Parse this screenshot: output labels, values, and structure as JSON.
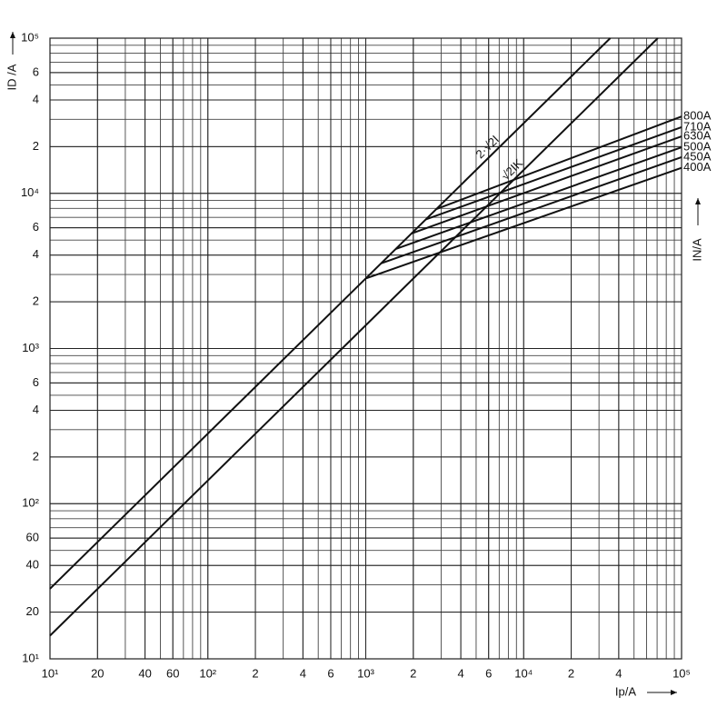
{
  "chart_data": {
    "type": "line",
    "xlabel": "Ip/A",
    "ylabel": "ID /A",
    "right_label": "IN/A",
    "xscale": "log",
    "yscale": "log",
    "grid": true,
    "color": "#111111",
    "xlim": [
      10,
      100000
    ],
    "ylim": [
      10,
      100000
    ],
    "xticks": [
      {
        "value": 10,
        "label": "10¹"
      },
      20,
      40,
      60,
      {
        "value": 100,
        "label": "10²"
      },
      {
        "value": 200,
        "label": "2"
      },
      {
        "value": 400,
        "label": "4"
      },
      {
        "value": 600,
        "label": "6"
      },
      {
        "value": 1000,
        "label": "10³"
      },
      {
        "value": 2000,
        "label": "2"
      },
      {
        "value": 4000,
        "label": "4"
      },
      {
        "value": 6000,
        "label": "6"
      },
      {
        "value": 10000,
        "label": "10⁴"
      },
      {
        "value": 20000,
        "label": "2"
      },
      {
        "value": 40000,
        "label": "4"
      },
      {
        "value": 100000,
        "label": "10⁵"
      }
    ],
    "yticks": [
      {
        "value": 10,
        "label": "10¹"
      },
      20,
      40,
      60,
      {
        "value": 100,
        "label": "10²"
      },
      {
        "value": 200,
        "label": "2"
      },
      {
        "value": 400,
        "label": "4"
      },
      {
        "value": 600,
        "label": "6"
      },
      {
        "value": 1000,
        "label": "10³"
      },
      {
        "value": 2000,
        "label": "2"
      },
      {
        "value": 4000,
        "label": "4"
      },
      {
        "value": 6000,
        "label": "6"
      },
      {
        "value": 10000,
        "label": "10⁴"
      },
      {
        "value": 20000,
        "label": "2"
      },
      {
        "value": 40000,
        "label": "4"
      },
      {
        "value": 60000,
        "label": "6"
      },
      {
        "value": 100000,
        "label": "10⁵"
      }
    ],
    "series": [
      {
        "name": "2·√2I",
        "x": [
          10,
          35355
        ],
        "values": [
          28.3,
          100000
        ]
      },
      {
        "name": "√2IK",
        "x": [
          10,
          70711
        ],
        "values": [
          14.1,
          100000
        ]
      },
      {
        "name": "800A",
        "x": [
          2800,
          100000
        ],
        "values": [
          7918,
          31300
        ]
      },
      {
        "name": "710A",
        "x": [
          2400,
          100000
        ],
        "values": [
          6787,
          26700
        ]
      },
      {
        "name": "630A",
        "x": [
          1950,
          100000
        ],
        "values": [
          5515,
          23300
        ]
      },
      {
        "name": "500A",
        "x": [
          1550,
          100000
        ],
        "values": [
          4383,
          19800
        ]
      },
      {
        "name": "450A",
        "x": [
          1250,
          100000
        ],
        "values": [
          3535,
          17100
        ]
      },
      {
        "name": "400A",
        "x": [
          1000,
          100000
        ],
        "values": [
          2828,
          14600
        ]
      }
    ]
  }
}
